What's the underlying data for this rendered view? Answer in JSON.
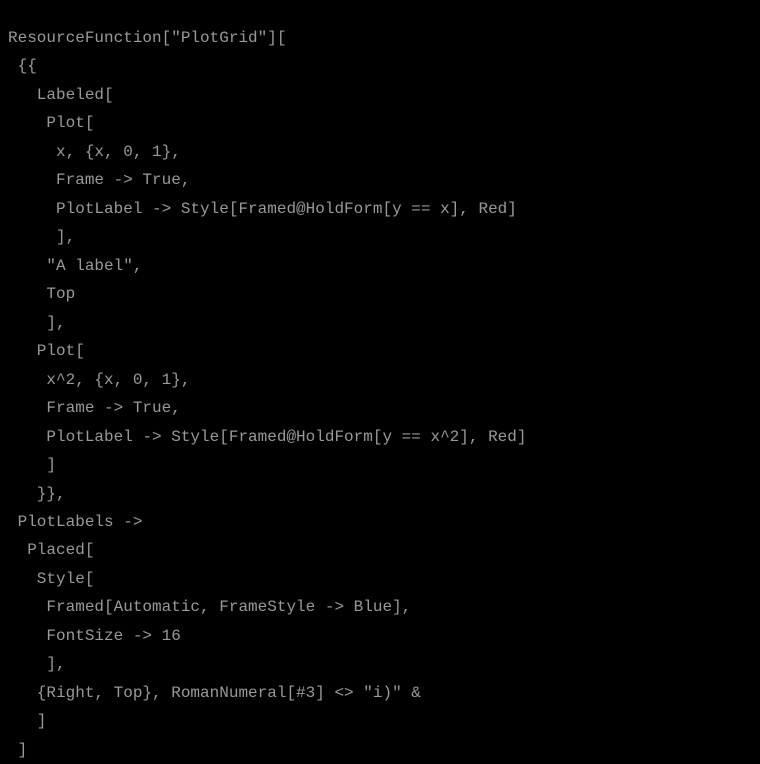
{
  "code": {
    "background_color": "#000000",
    "text_color": "#999999",
    "font_family": "Consolas, Monaco, Courier New, monospace",
    "font_size": 16,
    "line_height": 1.78,
    "lines": [
      "ResourceFunction[\"PlotGrid\"][",
      " {{",
      "   Labeled[",
      "    Plot[",
      "     x, {x, 0, 1},",
      "     Frame -> True,",
      "     PlotLabel -> Style[Framed@HoldForm[y == x], Red]",
      "     ],",
      "    \"A label\",",
      "    Top",
      "    ],",
      "   Plot[",
      "    x^2, {x, 0, 1},",
      "    Frame -> True,",
      "    PlotLabel -> Style[Framed@HoldForm[y == x^2], Red]",
      "    ]",
      "   }},",
      " PlotLabels ->",
      "  Placed[",
      "   Style[",
      "    Framed[Automatic, FrameStyle -> Blue],",
      "    FontSize -> 16",
      "    ],",
      "   {Right, Top}, RomanNumeral[#3] <> \"i)\" &",
      "   ]",
      " ]"
    ]
  }
}
